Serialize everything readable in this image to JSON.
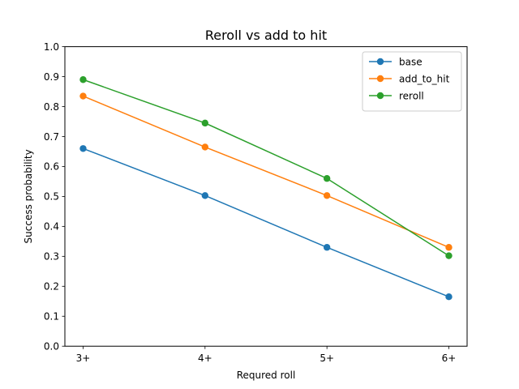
{
  "chart_data": {
    "type": "line",
    "title": "Reroll vs add to hit",
    "xlabel": "Requred roll",
    "ylabel": "Success probability",
    "categories": [
      "3+",
      "4+",
      "5+",
      "6+"
    ],
    "ylim": [
      0.0,
      1.0
    ],
    "yticks": [
      0.0,
      0.1,
      0.2,
      0.3,
      0.4,
      0.5,
      0.6,
      0.7,
      0.8,
      0.9,
      1.0
    ],
    "grid": false,
    "legend_position": "top-right",
    "series": [
      {
        "name": "base",
        "color": "#1f77b4",
        "values": [
          0.66,
          0.503,
          0.33,
          0.165
        ]
      },
      {
        "name": "add_to_hit",
        "color": "#ff7f0e",
        "values": [
          0.835,
          0.665,
          0.503,
          0.33
        ]
      },
      {
        "name": "reroll",
        "color": "#2ca02c",
        "values": [
          0.89,
          0.745,
          0.56,
          0.302
        ]
      }
    ]
  }
}
